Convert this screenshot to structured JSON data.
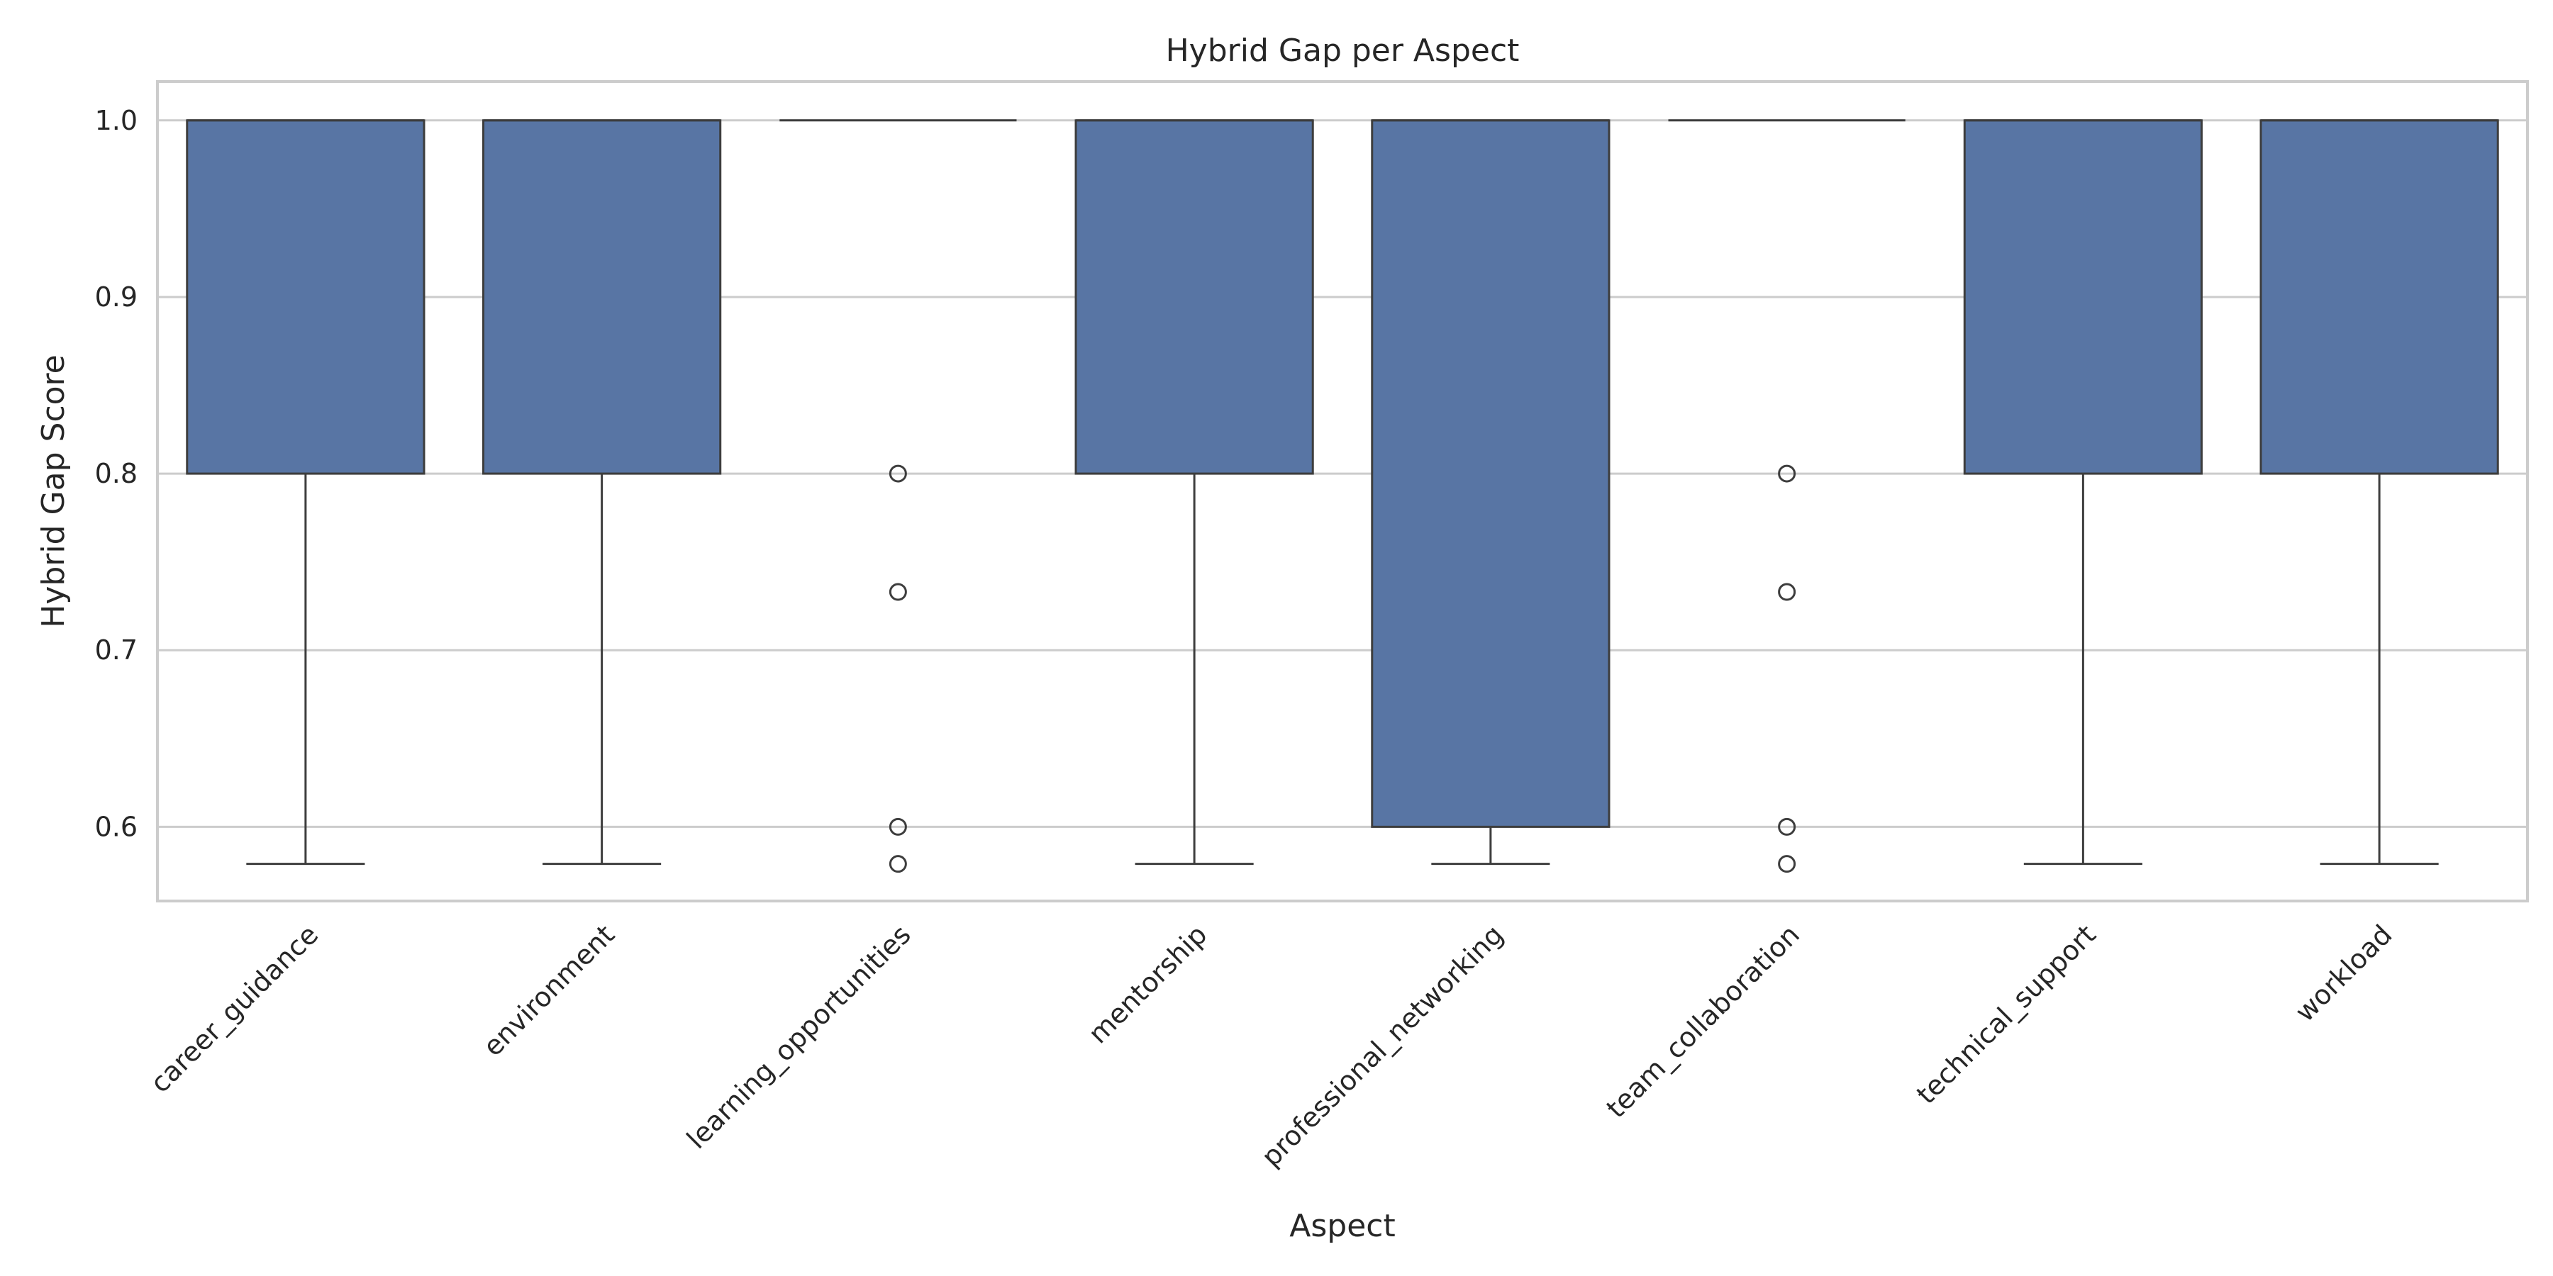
{
  "chart_data": {
    "type": "box",
    "title": "Hybrid Gap per Aspect",
    "xlabel": "Aspect",
    "ylabel": "Hybrid Gap Score",
    "ylim": [
      0.558,
      1.022
    ],
    "yticks": [
      "0.6",
      "0.7",
      "0.8",
      "0.9",
      "1.0"
    ],
    "ytick_values": [
      0.6,
      0.7,
      0.8,
      0.9,
      1.0
    ],
    "grid": true,
    "box_color": "#5875a4",
    "line_color": "#3d3d3d",
    "categories": [
      "career_guidance",
      "environment",
      "learning_opportunities",
      "mentorship",
      "professional_networking",
      "team_collaboration",
      "technical_support",
      "workload"
    ],
    "boxes": [
      {
        "category": "career_guidance",
        "whislo": 0.579,
        "q1": 0.8,
        "med": 1.0,
        "q3": 1.0,
        "whishi": 1.0,
        "fliers": []
      },
      {
        "category": "environment",
        "whislo": 0.579,
        "q1": 0.8,
        "med": 1.0,
        "q3": 1.0,
        "whishi": 1.0,
        "fliers": []
      },
      {
        "category": "learning_opportunities",
        "whislo": 1.0,
        "q1": 1.0,
        "med": 1.0,
        "q3": 1.0,
        "whishi": 1.0,
        "fliers": [
          0.8,
          0.733,
          0.6,
          0.579
        ]
      },
      {
        "category": "mentorship",
        "whislo": 0.579,
        "q1": 0.8,
        "med": 1.0,
        "q3": 1.0,
        "whishi": 1.0,
        "fliers": []
      },
      {
        "category": "professional_networking",
        "whislo": 0.579,
        "q1": 0.6,
        "med": 1.0,
        "q3": 1.0,
        "whishi": 1.0,
        "fliers": []
      },
      {
        "category": "team_collaboration",
        "whislo": 1.0,
        "q1": 1.0,
        "med": 1.0,
        "q3": 1.0,
        "whishi": 1.0,
        "fliers": [
          0.8,
          0.733,
          0.6,
          0.579
        ]
      },
      {
        "category": "technical_support",
        "whislo": 0.579,
        "q1": 0.8,
        "med": 1.0,
        "q3": 1.0,
        "whishi": 1.0,
        "fliers": []
      },
      {
        "category": "workload",
        "whislo": 0.579,
        "q1": 0.8,
        "med": 1.0,
        "q3": 1.0,
        "whishi": 1.0,
        "fliers": []
      }
    ]
  }
}
